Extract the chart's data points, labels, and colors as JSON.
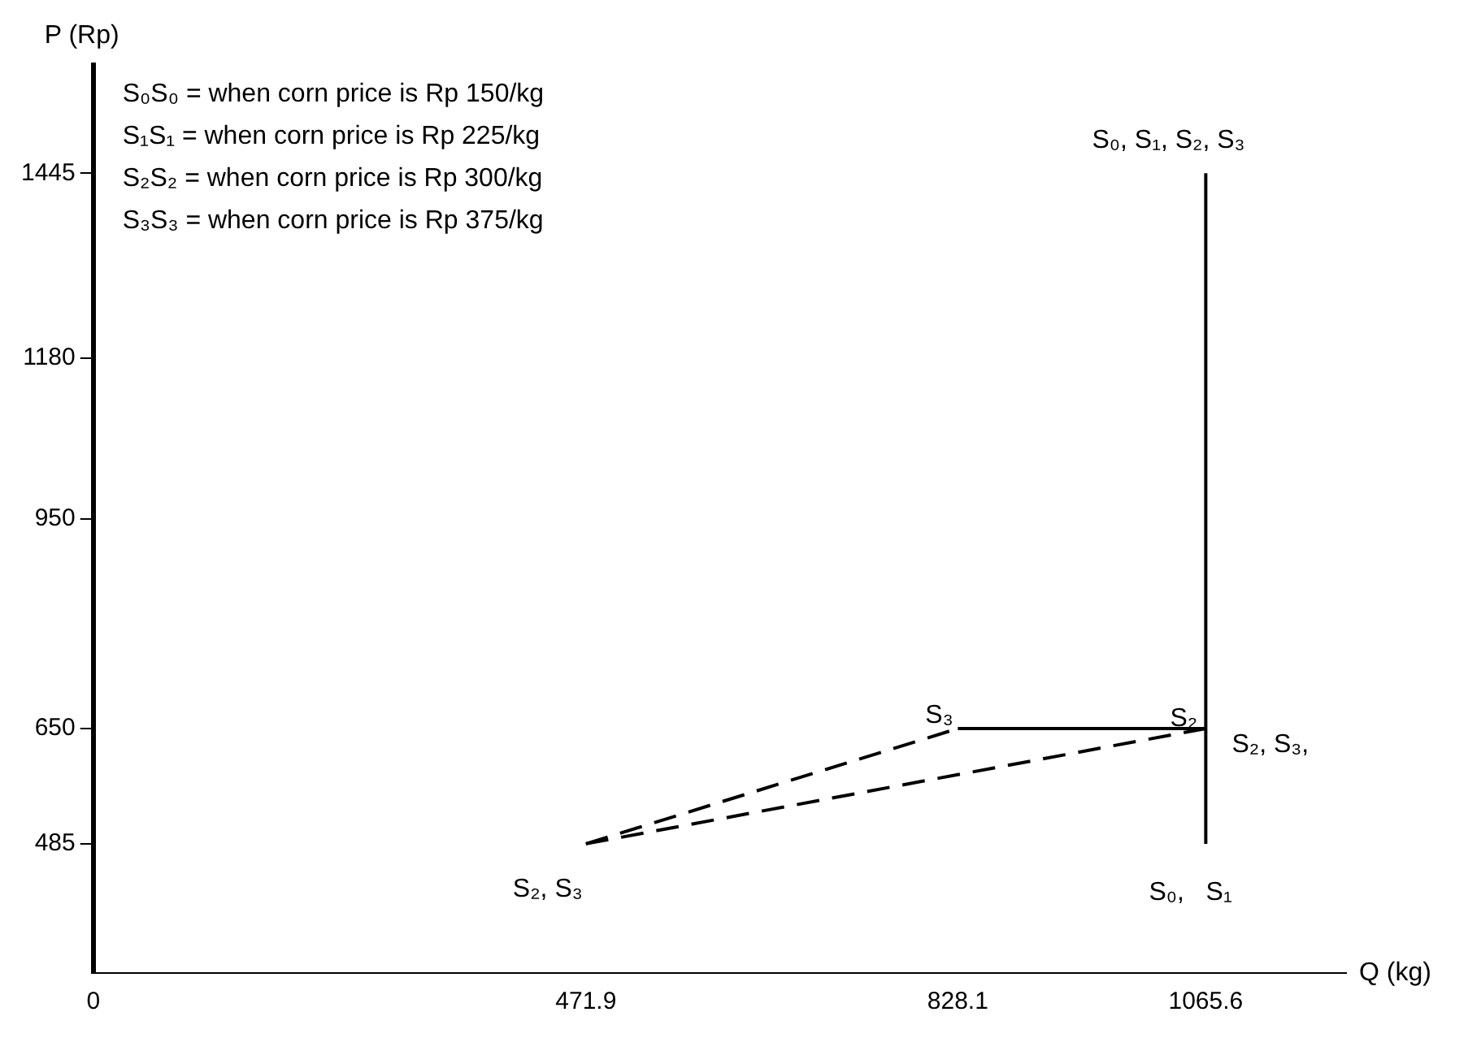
{
  "chart_data": {
    "type": "line",
    "xlabel": "Q (kg)",
    "ylabel": "P (Rp)",
    "xlim": [
      0,
      1200
    ],
    "xticks": [
      0,
      471.9,
      828.1,
      1065.6
    ],
    "ylim": [
      300,
      1600
    ],
    "yticks": [
      485,
      650,
      950,
      1180,
      1445
    ],
    "grid": false,
    "legend": false,
    "marker": "none",
    "series": [
      {
        "color": "#000000",
        "line_style": "solid",
        "x": [
          1065.6,
          1065.6
        ],
        "values": [
          485,
          1445
        ]
      },
      {
        "color": "#000000",
        "line_style": "solid",
        "x": [
          828.1,
          1065.6
        ],
        "values": [
          650,
          650
        ]
      },
      {
        "color": "#000000",
        "line_style": "dashed",
        "x": [
          471.9,
          828.1
        ],
        "values": [
          485,
          650
        ]
      },
      {
        "color": "#000000",
        "line_style": "dashed",
        "x": [
          471.9,
          1065.6
        ],
        "values": [
          485,
          650
        ]
      }
    ],
    "annotations": [
      "S₀S₀ = when corn price is Rp 150/kg",
      "S₁S₁ = when corn price is Rp 225/kg",
      "S₂S₂ = when corn price is Rp 300/kg",
      "S₃S₃ = when corn price is Rp 375/kg",
      {
        "text": "S₀, S₁, S₂, S₃",
        "x": 1065.6,
        "y": 1445
      },
      {
        "text": "S₃",
        "x": 828.1,
        "y": 650
      },
      {
        "text": "S₂",
        "x": 1065.6,
        "y": 650
      },
      {
        "text": "S₂, S₃,",
        "x": 1065.6,
        "y": 650
      },
      {
        "text": "S₂, S₃",
        "x": 471.9,
        "y": 485
      },
      {
        "text": "S₀,   S₁",
        "x": 1065.6,
        "y": 485
      }
    ]
  }
}
